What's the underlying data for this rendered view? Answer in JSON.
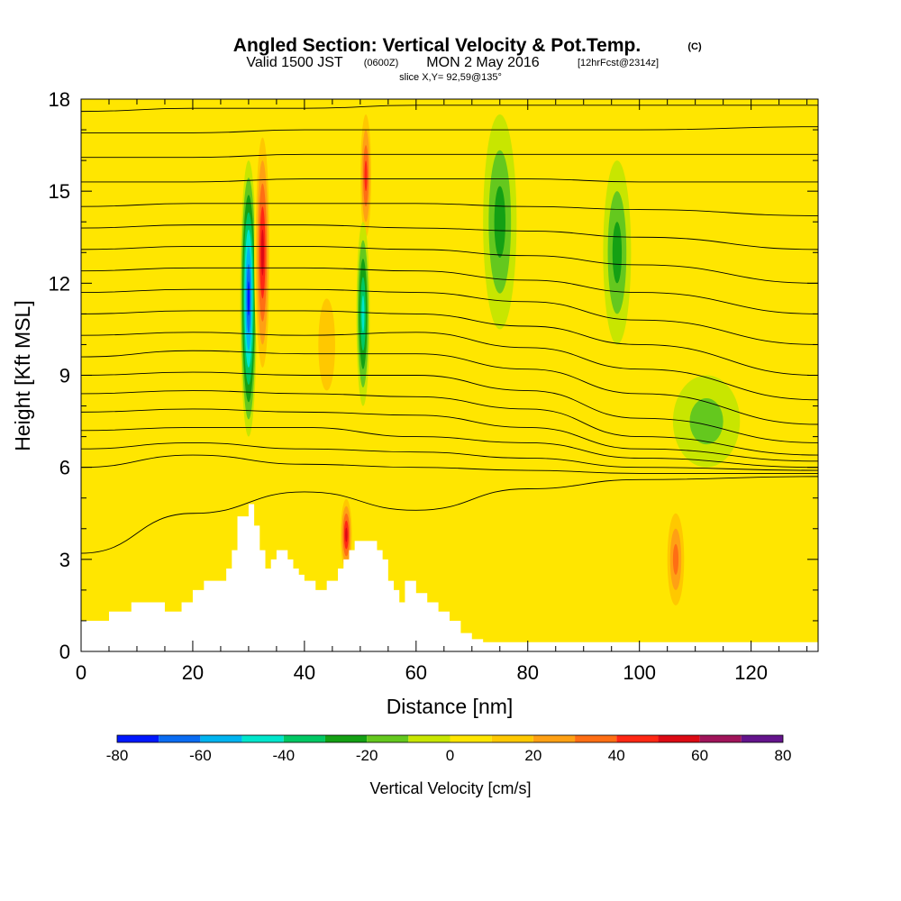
{
  "header": {
    "title_main": "Angled Section: Vertical Velocity & Pot.Temp.",
    "title_mark": "(C)",
    "valid_a": "Valid 1500 JST",
    "valid_b": "(0600Z)",
    "valid_c": "MON 2 May 2016",
    "valid_d": "[12hrFcst@2314z]",
    "slice": "slice X,Y= 92,59@135°"
  },
  "chart_data": {
    "type": "heatmap",
    "title": "Angled Section: Vertical Velocity & Pot.Temp.",
    "xlabel": "Distance [nm]",
    "ylabel": "Height [Kft MSL]",
    "xlim": [
      0,
      132
    ],
    "ylim": [
      0,
      18
    ],
    "x_ticks": [
      0,
      20,
      40,
      60,
      80,
      100,
      120
    ],
    "y_ticks": [
      0,
      3,
      6,
      9,
      12,
      15,
      18
    ],
    "x_tick_labels": [
      "0",
      "20",
      "40",
      "60",
      "80",
      "100",
      "120"
    ],
    "y_tick_labels": [
      "0",
      "3",
      "6",
      "9",
      "12",
      "15",
      "18"
    ],
    "colorbar": {
      "title": "Vertical Velocity [cm/s]",
      "levels": [
        -80,
        -70,
        -60,
        -50,
        -40,
        -30,
        -20,
        -10,
        0,
        10,
        20,
        30,
        40,
        50,
        60,
        70,
        80
      ],
      "tick_values": [
        -80,
        -60,
        -40,
        -20,
        0,
        20,
        40,
        60,
        80
      ],
      "tick_labels": [
        "-80",
        "-60",
        "-40",
        "-20",
        "0",
        "20",
        "40",
        "60",
        "80"
      ],
      "colors": [
        "#0018ff",
        "#0a6cf2",
        "#00b4f0",
        "#00e6cc",
        "#00c864",
        "#14a014",
        "#64c81e",
        "#c8e600",
        "#ffe600",
        "#ffc800",
        "#ffa014",
        "#ff6e14",
        "#ff2814",
        "#dc0a14",
        "#a0145a",
        "#64148c"
      ]
    },
    "terrain_profile": {
      "x": [
        0,
        5,
        9,
        12,
        15,
        18,
        20,
        22,
        24,
        26,
        27,
        28,
        30,
        31,
        32,
        33,
        34,
        35,
        36,
        37,
        38,
        39,
        40,
        42,
        44,
        46,
        47,
        48,
        49,
        50,
        52,
        53,
        54,
        55,
        56,
        57,
        58,
        59,
        60,
        62,
        64,
        66,
        68,
        70,
        72,
        80,
        100,
        120,
        132
      ],
      "height": [
        1.0,
        1.3,
        1.6,
        1.6,
        1.3,
        1.6,
        2.0,
        2.3,
        2.3,
        2.7,
        3.3,
        4.4,
        4.8,
        4.1,
        3.3,
        2.7,
        3.0,
        3.3,
        3.3,
        3.0,
        2.7,
        2.5,
        2.3,
        2.0,
        2.3,
        2.7,
        3.0,
        3.3,
        3.6,
        3.6,
        3.6,
        3.3,
        3.0,
        2.3,
        2.0,
        1.6,
        2.3,
        2.3,
        1.9,
        1.6,
        1.3,
        1.0,
        0.6,
        0.4,
        0.3,
        0.3,
        0.3,
        0.3,
        0.3
      ]
    },
    "isentropes_height_at_distance": {
      "x": [
        0,
        20,
        40,
        60,
        80,
        100,
        132
      ],
      "levels_height": [
        [
          3.2,
          4.5,
          5.2,
          4.6,
          5.3,
          5.6,
          5.7
        ],
        [
          6.0,
          6.4,
          6.1,
          6.0,
          5.9,
          5.8,
          5.8
        ],
        [
          6.6,
          6.8,
          6.6,
          6.5,
          6.3,
          6.0,
          5.9
        ],
        [
          7.2,
          7.3,
          7.3,
          7.0,
          6.8,
          6.3,
          6.0
        ],
        [
          7.8,
          7.9,
          7.8,
          7.7,
          7.3,
          6.6,
          6.2
        ],
        [
          8.4,
          8.5,
          8.4,
          8.3,
          7.9,
          7.0,
          6.4
        ],
        [
          9.0,
          9.1,
          9.0,
          9.0,
          8.5,
          7.6,
          6.8
        ],
        [
          9.6,
          9.8,
          9.7,
          9.7,
          9.2,
          8.4,
          7.4
        ],
        [
          10.3,
          10.4,
          10.3,
          10.4,
          9.9,
          9.2,
          8.2
        ],
        [
          11.0,
          11.1,
          11.1,
          11.0,
          10.6,
          10.0,
          9.0
        ],
        [
          11.7,
          11.8,
          11.8,
          11.7,
          11.4,
          10.8,
          10.0
        ],
        [
          12.4,
          12.5,
          12.5,
          12.4,
          12.1,
          11.7,
          11.0
        ],
        [
          13.1,
          13.2,
          13.2,
          13.1,
          12.9,
          12.6,
          12.0
        ],
        [
          13.8,
          13.9,
          13.9,
          13.8,
          13.7,
          13.5,
          13.1
        ],
        [
          14.5,
          14.6,
          14.6,
          14.6,
          14.5,
          14.4,
          14.2
        ],
        [
          15.3,
          15.3,
          15.4,
          15.4,
          15.4,
          15.3,
          15.3
        ],
        [
          16.1,
          16.1,
          16.2,
          16.2,
          16.2,
          16.2,
          16.2
        ],
        [
          16.9,
          16.9,
          17.0,
          17.0,
          17.0,
          17.0,
          17.1
        ],
        [
          17.6,
          17.7,
          17.7,
          17.8,
          17.8,
          17.8,
          17.8
        ]
      ]
    },
    "velocity_features": [
      {
        "x": 30.0,
        "y": 11.5,
        "w": 1.5,
        "h": 4.5,
        "value": -75
      },
      {
        "x": 32.5,
        "y": 13.0,
        "w": 1.5,
        "h": 4.5,
        "value": 62
      },
      {
        "x": 47.5,
        "y": 3.8,
        "w": 1.2,
        "h": 1.4,
        "value": 60
      },
      {
        "x": 51.0,
        "y": 15.5,
        "w": 1.2,
        "h": 2.5,
        "value": 50
      },
      {
        "x": 50.5,
        "y": 11.0,
        "w": 1.2,
        "h": 3.0,
        "value": -45
      },
      {
        "x": 75.0,
        "y": 14.0,
        "w": 3.0,
        "h": 3.5,
        "value": -25
      },
      {
        "x": 96.0,
        "y": 13.0,
        "w": 2.5,
        "h": 3.0,
        "value": -25
      },
      {
        "x": 106.5,
        "y": 3.0,
        "w": 2.0,
        "h": 2.0,
        "value": 35
      },
      {
        "x": 112.0,
        "y": 7.5,
        "w": 6.0,
        "h": 1.5,
        "value": -15
      },
      {
        "x": 44.0,
        "y": 10.0,
        "w": 3.0,
        "h": 3.0,
        "value": 20
      }
    ]
  }
}
